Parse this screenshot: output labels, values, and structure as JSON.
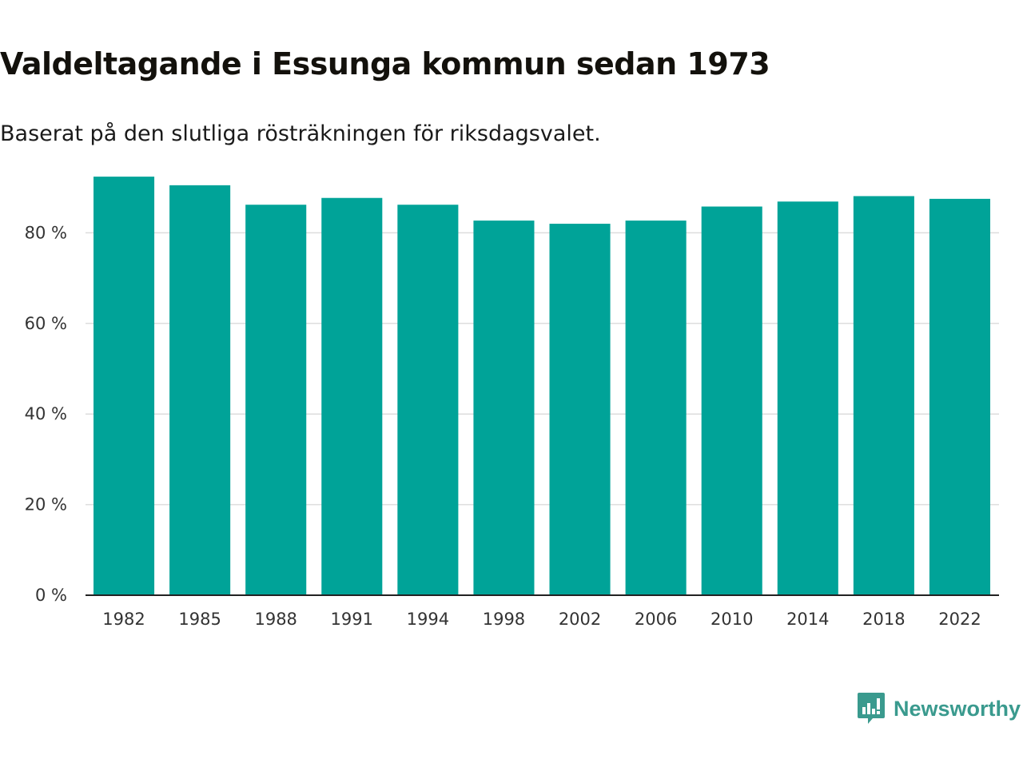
{
  "header": {
    "title": "Valdeltagande i Essunga kommun sedan 1973",
    "subtitle": "Baserat på den slutliga rösträkningen för riksdagsvalet."
  },
  "brand": {
    "name": "Newsworthy",
    "color": "#3a9a8e"
  },
  "colors": {
    "bar": "#00a398",
    "grid": "#dddddd",
    "axis": "#222222"
  },
  "chart_data": {
    "type": "bar",
    "title": "Valdeltagande i Essunga kommun sedan 1973",
    "subtitle": "Baserat på den slutliga rösträkningen för riksdagsvalet.",
    "xlabel": "",
    "ylabel": "",
    "categories": [
      "1982",
      "1985",
      "1988",
      "1991",
      "1994",
      "1998",
      "2002",
      "2006",
      "2010",
      "2014",
      "2018",
      "2022"
    ],
    "values": [
      92.4,
      90.5,
      86.2,
      87.7,
      86.2,
      82.7,
      82.0,
      82.7,
      85.8,
      86.9,
      88.1,
      87.5
    ],
    "ylim": [
      0,
      100
    ],
    "yticks": [
      0,
      20,
      40,
      60,
      80
    ],
    "ytick_labels": [
      "0 %",
      "20 %",
      "40 %",
      "60 %",
      "80 %"
    ],
    "grid": true
  }
}
